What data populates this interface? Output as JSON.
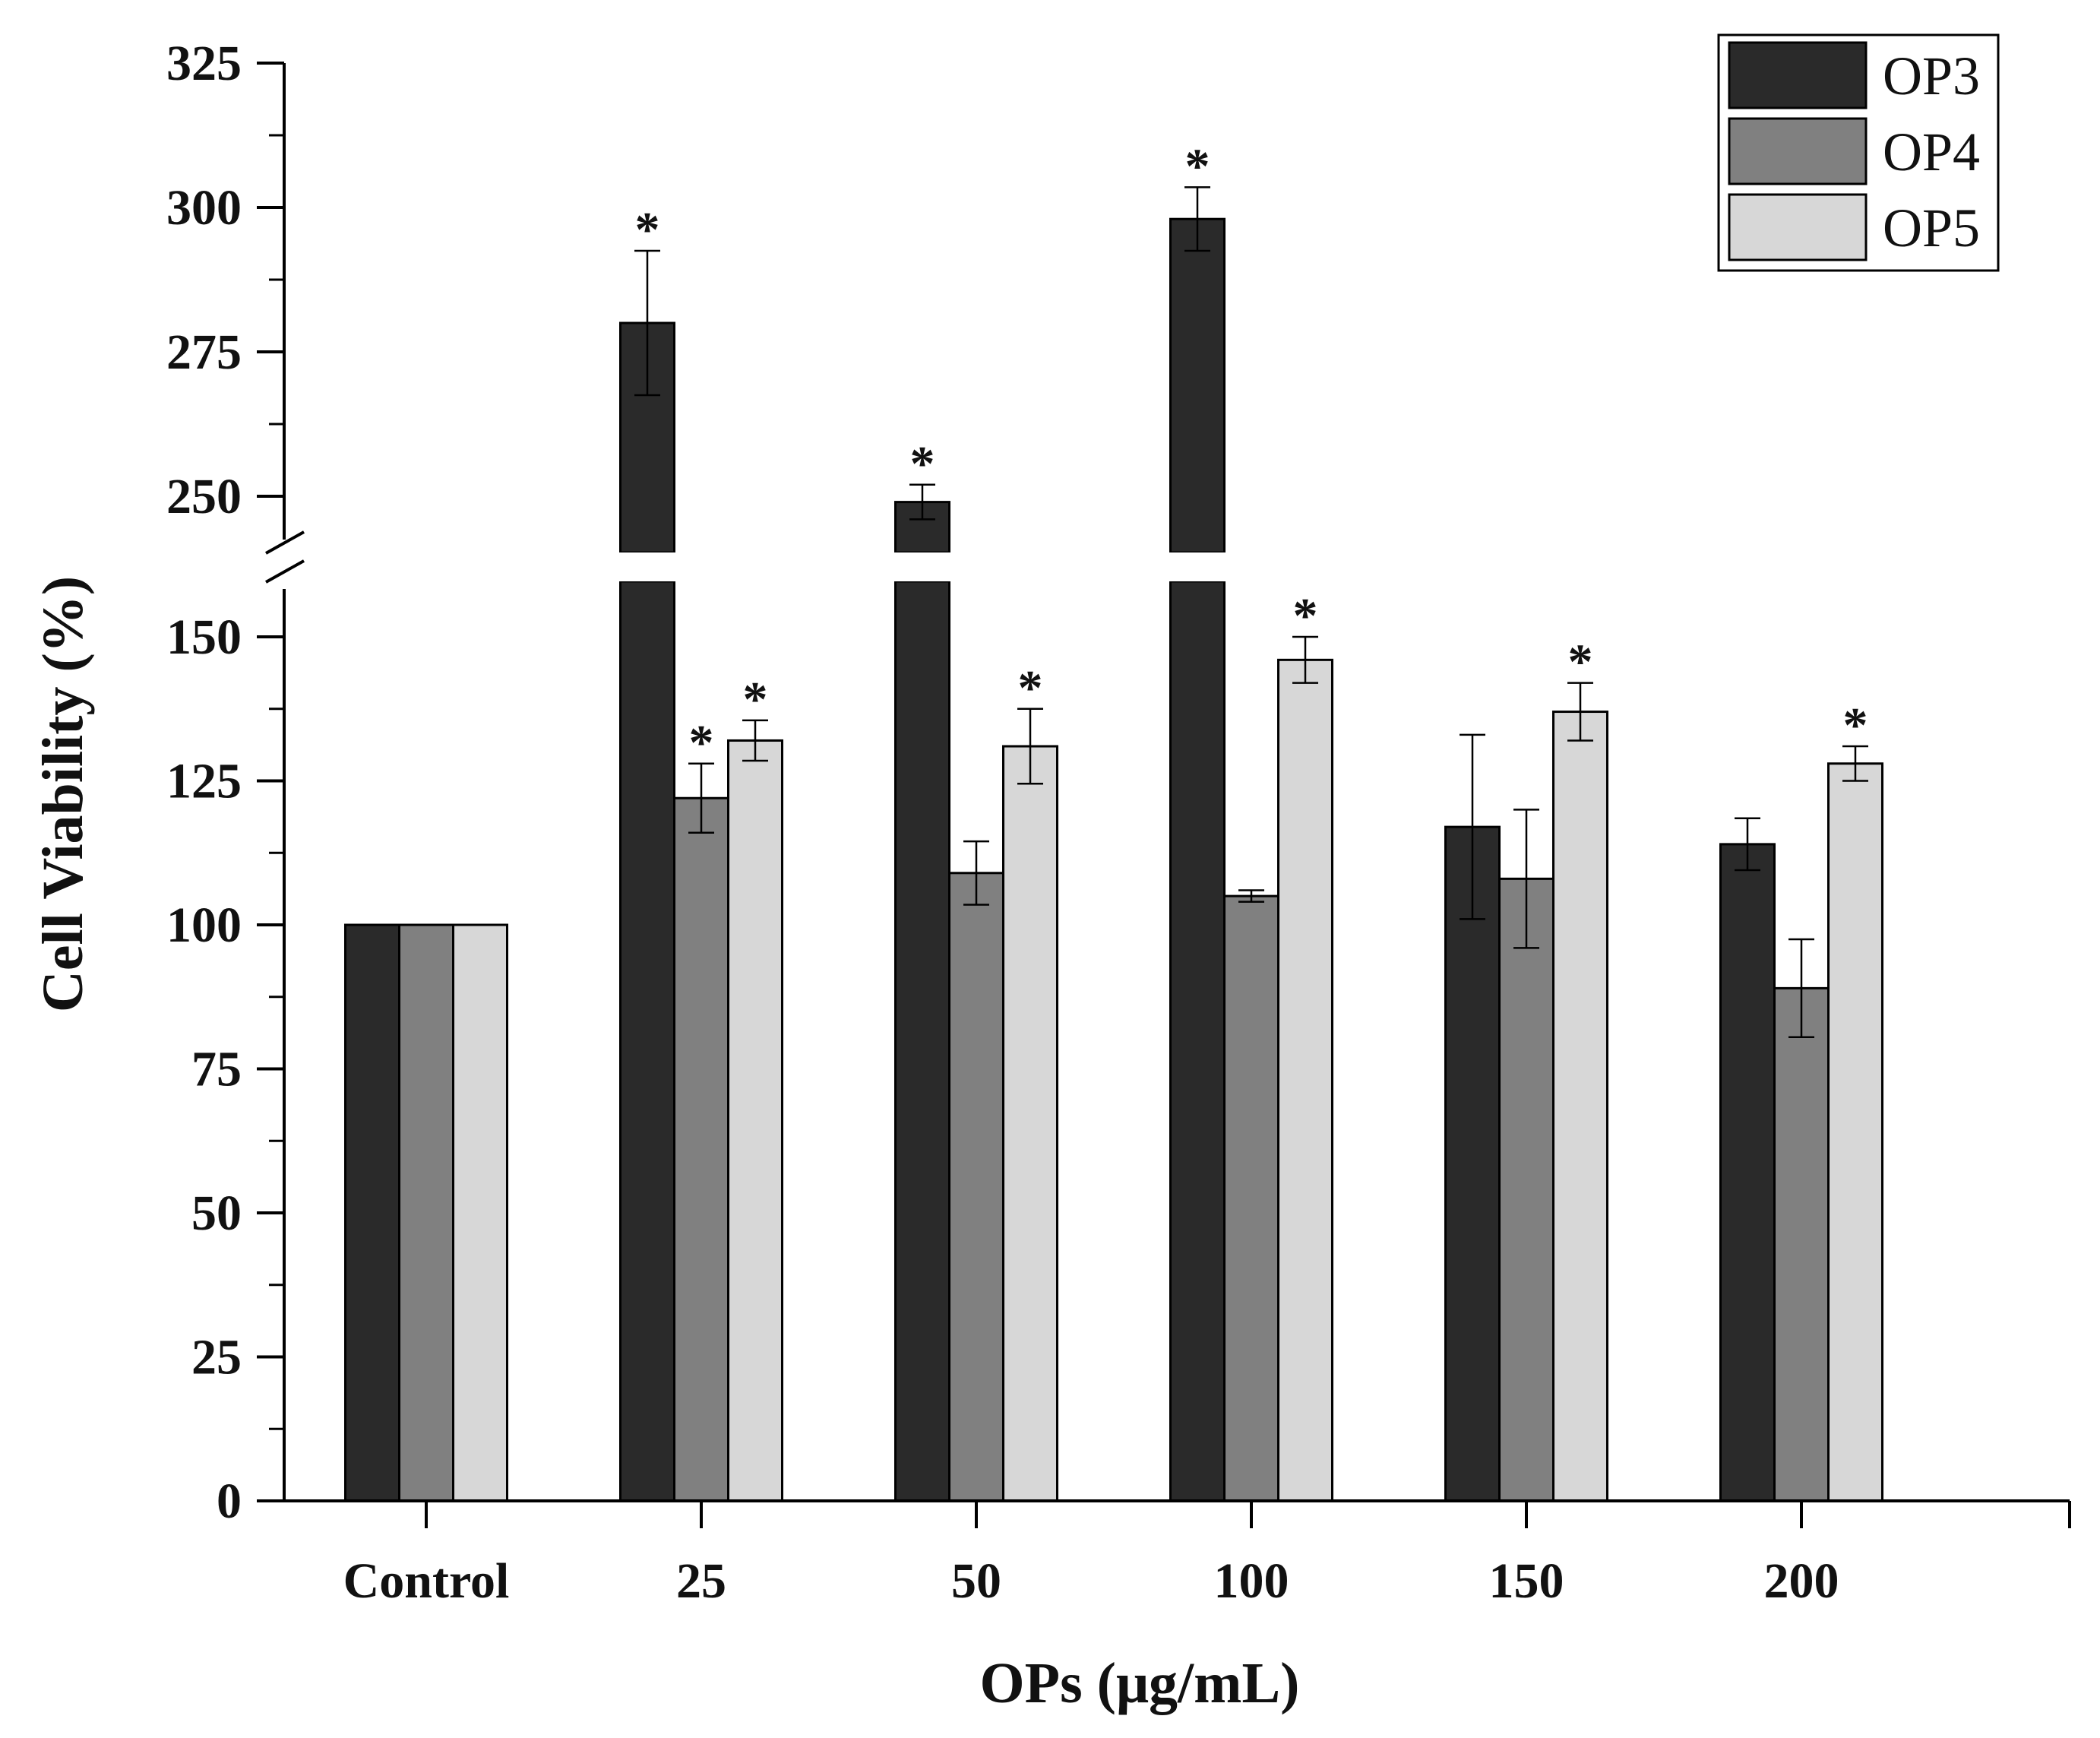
{
  "chart_data": {
    "type": "bar",
    "xlabel": "OPs (μg/mL)",
    "ylabel": "Cell Viability (%)",
    "categories": [
      "Control",
      "25",
      "50",
      "100",
      "150",
      "200"
    ],
    "y_axis": {
      "broken": true,
      "lower_segment": [
        0,
        160
      ],
      "upper_segment": [
        240,
        325
      ],
      "lower_ticks": [
        0,
        25,
        50,
        75,
        100,
        125,
        150
      ],
      "upper_ticks": [
        250,
        275,
        300,
        325
      ]
    },
    "legend_position": "top-right",
    "series": [
      {
        "name": "OP3",
        "color": "#2a2a2a",
        "values": [
          100,
          280,
          249,
          298,
          117,
          114
        ],
        "errors": [
          0,
          12.5,
          3,
          5.5,
          16,
          4.5
        ],
        "significant": [
          false,
          true,
          true,
          true,
          false,
          false
        ]
      },
      {
        "name": "OP4",
        "color": "#808080",
        "values": [
          100,
          122,
          109,
          105,
          108,
          89
        ],
        "errors": [
          0,
          6,
          5.5,
          1,
          12,
          8.5
        ],
        "significant": [
          false,
          true,
          false,
          false,
          false,
          false
        ]
      },
      {
        "name": "OP5",
        "color": "#d7d7d7",
        "values": [
          100,
          132,
          131,
          146,
          137,
          128
        ],
        "errors": [
          0,
          3.5,
          6.5,
          4,
          5,
          3
        ],
        "significant": [
          false,
          true,
          true,
          true,
          true,
          true
        ]
      }
    ],
    "significance_marker": "*",
    "grid": false
  }
}
